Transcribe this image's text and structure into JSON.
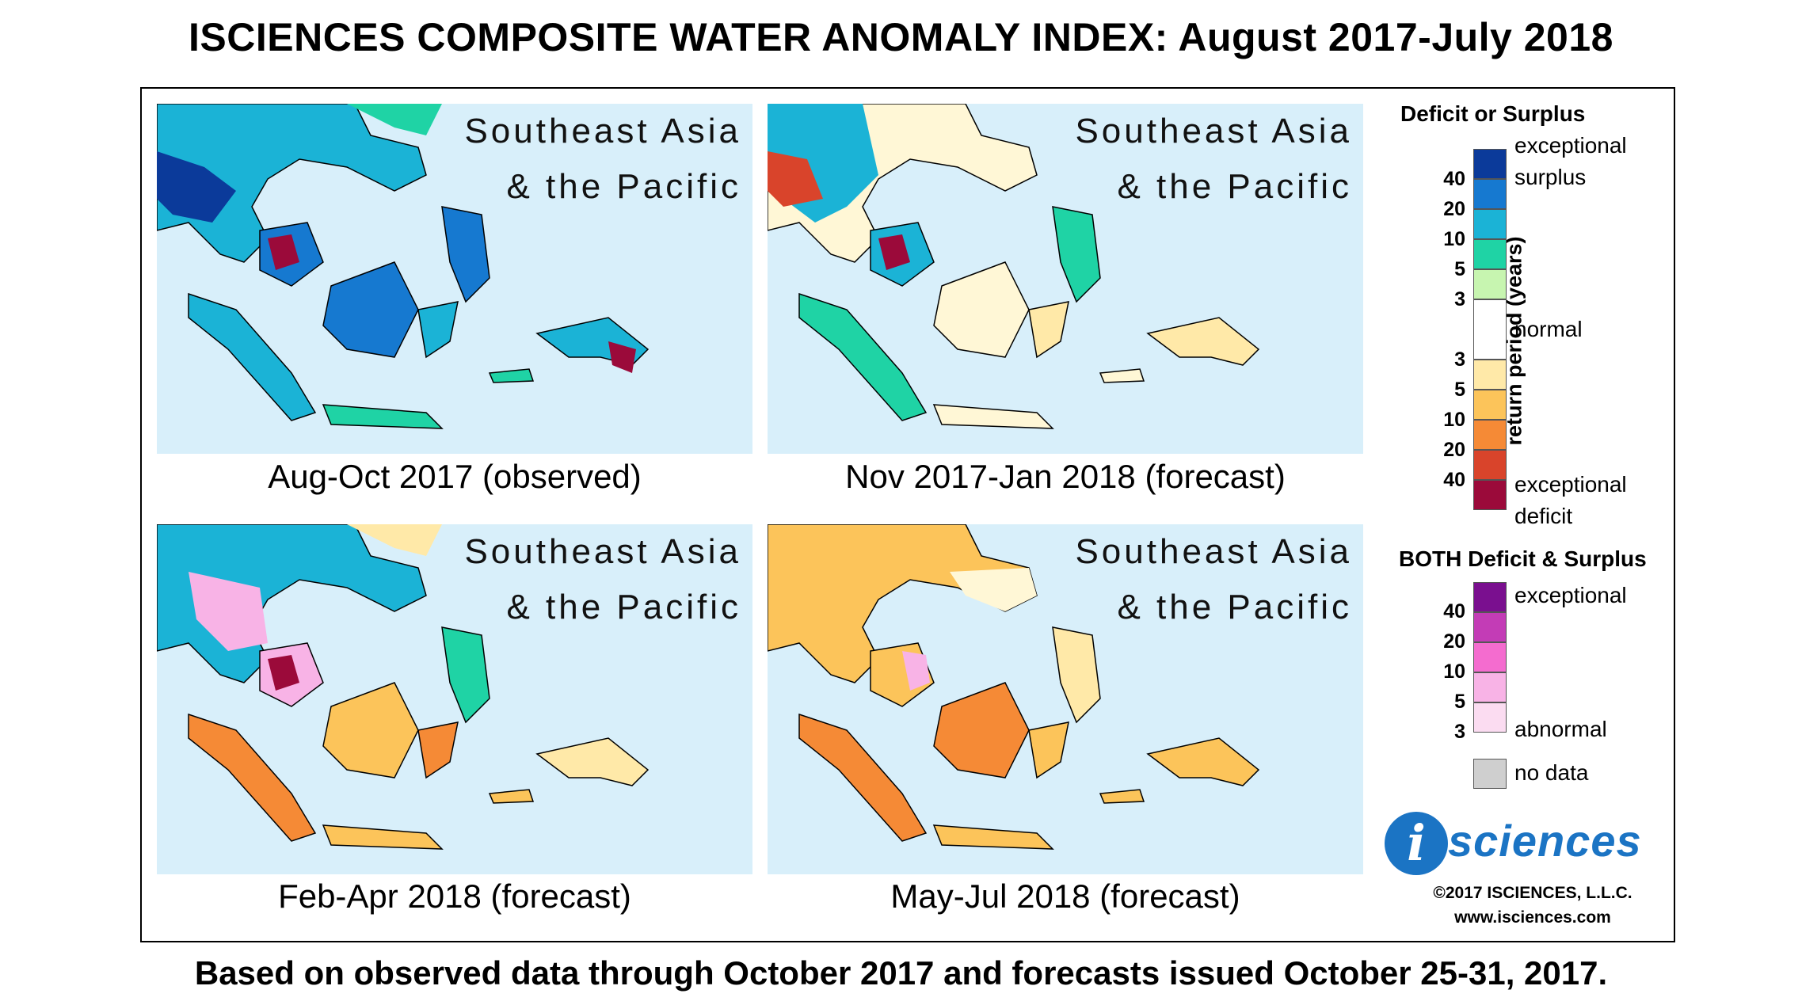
{
  "title": "ISCIENCES COMPOSITE WATER ANOMALY INDEX: August 2017-July 2018",
  "footer": "Based on observed data through October 2017 and forecasts issued October 25-31, 2017.",
  "region_line1": "Southeast Asia",
  "region_line2": "& the Pacific",
  "panels": [
    {
      "caption": "Aug-Oct 2017 (observed)"
    },
    {
      "caption": "Nov 2017-Jan 2018 (forecast)"
    },
    {
      "caption": "Feb-Apr 2018 (forecast)"
    },
    {
      "caption": "May-Jul 2018 (forecast)"
    }
  ],
  "legend": {
    "deficit_surplus_title": "Deficit or Surplus",
    "axis_label": "return period (years)",
    "exceptional_surplus_1": "exceptional",
    "exceptional_surplus_2": "surplus",
    "normal": "normal",
    "exceptional_deficit_1": "exceptional",
    "exceptional_deficit_2": "deficit",
    "surplus_ticks": [
      "40",
      "20",
      "10",
      "5",
      "3"
    ],
    "deficit_ticks": [
      "3",
      "5",
      "10",
      "20",
      "40"
    ],
    "surplus_colors": [
      "#0b3a9a",
      "#1679d0",
      "#1bb3d6",
      "#1fd3a5",
      "#c7f5b0"
    ],
    "normal_color": "#ffffff",
    "deficit_colors": [
      "#ffe9a8",
      "#fcc45a",
      "#f58a36",
      "#d9442b",
      "#9b0a3a"
    ],
    "both_title": "BOTH Deficit & Surplus",
    "both_exceptional": "exceptional",
    "both_abnormal": "abnormal",
    "both_ticks": [
      "40",
      "20",
      "10",
      "5",
      "3"
    ],
    "both_colors": [
      "#7a0f8f",
      "#c33cb6",
      "#f46ccf",
      "#f8b3e6",
      "#fbdcf1"
    ],
    "no_data": "no data",
    "no_data_color": "#cfcfcf"
  },
  "logo": {
    "letter": "i",
    "text": "sciences"
  },
  "copyright": "©2017 ISCIENCES, L.L.C.",
  "url": "www.isciences.com"
}
